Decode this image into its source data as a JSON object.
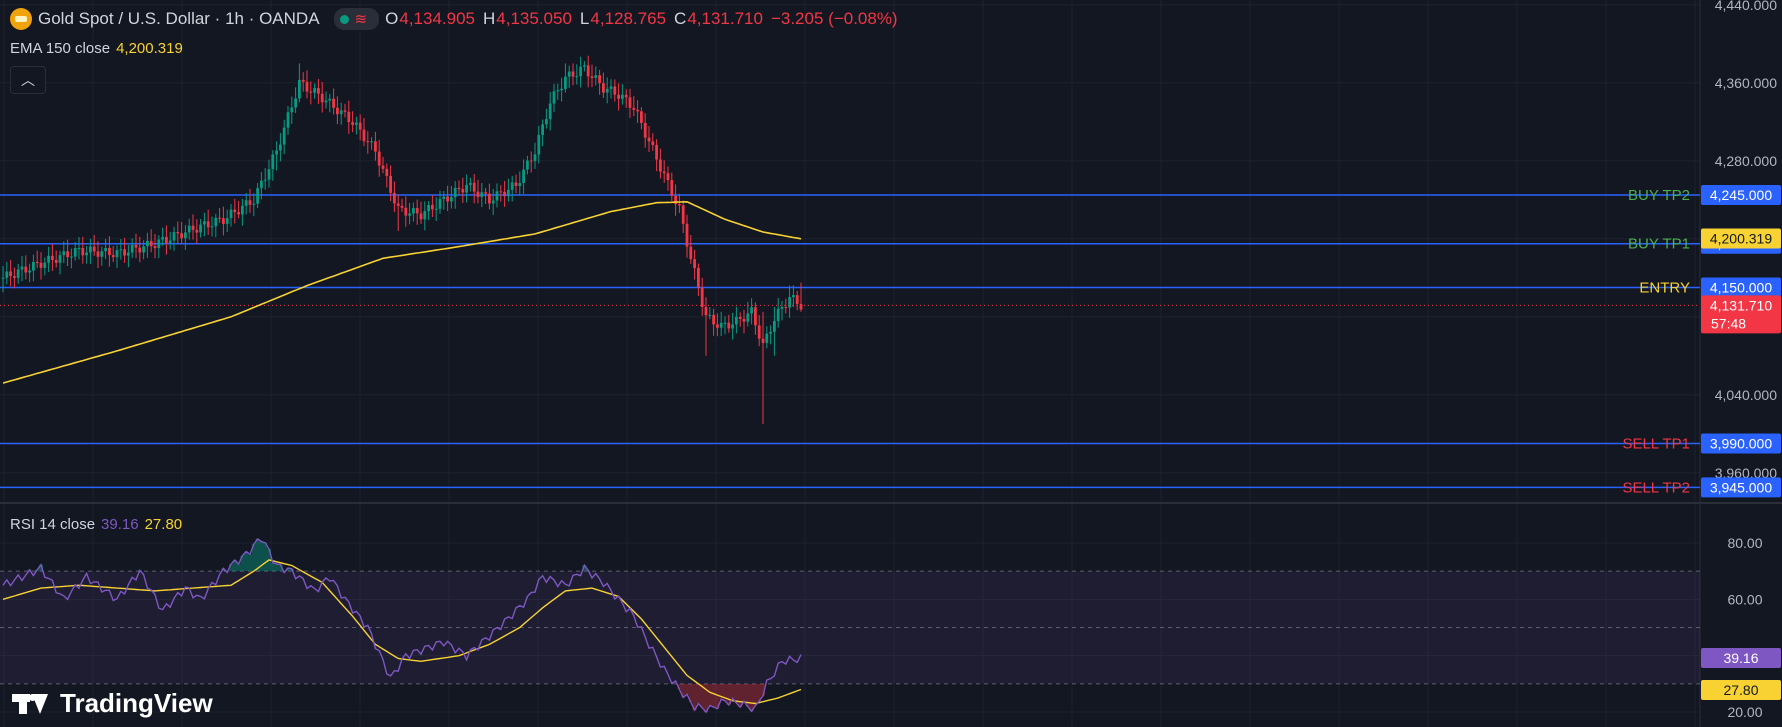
{
  "header": {
    "symbol": "Gold Spot / U.S. Dollar · 1h · OANDA",
    "ohlc": [
      {
        "k": "O",
        "v": "4,134.905"
      },
      {
        "k": "H",
        "v": "4,135.050"
      },
      {
        "k": "L",
        "v": "4,128.765"
      },
      {
        "k": "C",
        "v": "4,131.710"
      }
    ],
    "change": "−3.205 (−0.08%)"
  },
  "ema": {
    "label": "EMA 150 close",
    "value": "4,200.319"
  },
  "rsi": {
    "label": "RSI 14 close",
    "value": "39.16",
    "ma_value": "27.80"
  },
  "logo": {
    "text": "TradingView"
  },
  "colors": {
    "bg": "#131722",
    "up": "#089981",
    "down": "#f23645",
    "level": "#2962ff",
    "ema": "#f7d232",
    "rsi": "#7e57c2",
    "rsi_ma": "#f7d232"
  },
  "chart_data": [
    {
      "type": "candlestick",
      "price_axis_ticks": [
        "4,440.000",
        "4,360.000",
        "4,280.000",
        "4,040.000",
        "3,960.000"
      ],
      "ylim": [
        3930,
        4445
      ],
      "levels": [
        {
          "name": "BUY TP2",
          "value": 4245,
          "label": "4,245.000",
          "text_color": "#4caf50"
        },
        {
          "name": "BUY TP1",
          "value": 4195,
          "label": "4,195.000",
          "text_color": "#4caf50"
        },
        {
          "name": "ENTRY",
          "value": 4150,
          "label": "4,150.000",
          "text_color": "#f7d232"
        },
        {
          "name": "SELL TP1",
          "value": 3990,
          "label": "3,990.000",
          "text_color": "#f23645"
        },
        {
          "name": "SELL TP2",
          "value": 3945,
          "label": "3,945.000",
          "text_color": "#f23645"
        }
      ],
      "ema_tag": {
        "value": 4200.319,
        "label": "4,200.319"
      },
      "last_price": {
        "value": 4131.71,
        "label": "4,131.710",
        "countdown": "57:48"
      },
      "candle_close_keypoints": [
        [
          0,
          4160
        ],
        [
          10,
          4175
        ],
        [
          20,
          4188
        ],
        [
          30,
          4185
        ],
        [
          40,
          4195
        ],
        [
          50,
          4210
        ],
        [
          58,
          4220
        ],
        [
          66,
          4240
        ],
        [
          72,
          4290
        ],
        [
          78,
          4360
        ],
        [
          84,
          4345
        ],
        [
          92,
          4320
        ],
        [
          98,
          4290
        ],
        [
          104,
          4230
        ],
        [
          110,
          4225
        ],
        [
          116,
          4240
        ],
        [
          122,
          4255
        ],
        [
          128,
          4240
        ],
        [
          135,
          4255
        ],
        [
          140,
          4290
        ],
        [
          144,
          4340
        ],
        [
          148,
          4365
        ],
        [
          153,
          4375
        ],
        [
          158,
          4355
        ],
        [
          162,
          4348
        ],
        [
          166,
          4335
        ],
        [
          170,
          4300
        ],
        [
          174,
          4265
        ],
        [
          178,
          4230
        ],
        [
          181,
          4180
        ],
        [
          185,
          4120
        ],
        [
          189,
          4110
        ],
        [
          193,
          4115
        ],
        [
          197,
          4125
        ],
        [
          200,
          4090
        ],
        [
          203,
          4118
        ],
        [
          207,
          4140
        ],
        [
          210,
          4132
        ]
      ],
      "candle_range_keypoints": [
        [
          0,
          4145,
          4172
        ],
        [
          40,
          4180,
          4205
        ],
        [
          72,
          4270,
          4300
        ],
        [
          78,
          4340,
          4380
        ],
        [
          104,
          4208,
          4245
        ],
        [
          148,
          4350,
          4380
        ],
        [
          185,
          4080,
          4140
        ],
        [
          200,
          4010,
          4125
        ],
        [
          203,
          4080,
          4130
        ],
        [
          210,
          4125,
          4155
        ]
      ],
      "ema_keypoints": [
        [
          0,
          4052
        ],
        [
          30,
          4085
        ],
        [
          60,
          4120
        ],
        [
          80,
          4152
        ],
        [
          100,
          4180
        ],
        [
          120,
          4192
        ],
        [
          140,
          4205
        ],
        [
          160,
          4228
        ],
        [
          172,
          4237
        ],
        [
          180,
          4238
        ],
        [
          190,
          4220
        ],
        [
          200,
          4207
        ],
        [
          210,
          4200
        ]
      ]
    },
    {
      "type": "line",
      "name": "RSI 14",
      "y_ticks": [
        "80.00",
        "60.00",
        "20.00"
      ],
      "ylim": [
        20,
        80
      ],
      "band": [
        30,
        70
      ],
      "midline": 50,
      "rsi_keypoints": [
        [
          0,
          65
        ],
        [
          10,
          71
        ],
        [
          16,
          60
        ],
        [
          22,
          68
        ],
        [
          30,
          60
        ],
        [
          36,
          70
        ],
        [
          42,
          56
        ],
        [
          48,
          64
        ],
        [
          52,
          60
        ],
        [
          58,
          70
        ],
        [
          64,
          76
        ],
        [
          68,
          82
        ],
        [
          72,
          72
        ],
        [
          76,
          70
        ],
        [
          82,
          63
        ],
        [
          86,
          68
        ],
        [
          90,
          60
        ],
        [
          96,
          50
        ],
        [
          102,
          32
        ],
        [
          106,
          40
        ],
        [
          110,
          42
        ],
        [
          116,
          45
        ],
        [
          122,
          40
        ],
        [
          128,
          47
        ],
        [
          132,
          52
        ],
        [
          138,
          60
        ],
        [
          142,
          68
        ],
        [
          148,
          65
        ],
        [
          153,
          71
        ],
        [
          158,
          66
        ],
        [
          162,
          60
        ],
        [
          166,
          54
        ],
        [
          170,
          44
        ],
        [
          174,
          35
        ],
        [
          178,
          28
        ],
        [
          182,
          22
        ],
        [
          186,
          21
        ],
        [
          190,
          24
        ],
        [
          194,
          23
        ],
        [
          198,
          21
        ],
        [
          201,
          30
        ],
        [
          205,
          38
        ],
        [
          210,
          39
        ]
      ],
      "rsi_ma_keypoints": [
        [
          0,
          60
        ],
        [
          10,
          64
        ],
        [
          20,
          65
        ],
        [
          30,
          64
        ],
        [
          40,
          63
        ],
        [
          50,
          64
        ],
        [
          60,
          65
        ],
        [
          66,
          70
        ],
        [
          70,
          74
        ],
        [
          76,
          72
        ],
        [
          84,
          66
        ],
        [
          92,
          54
        ],
        [
          98,
          44
        ],
        [
          104,
          39
        ],
        [
          110,
          38
        ],
        [
          120,
          40
        ],
        [
          128,
          44
        ],
        [
          136,
          50
        ],
        [
          142,
          57
        ],
        [
          148,
          63
        ],
        [
          155,
          64
        ],
        [
          162,
          61
        ],
        [
          168,
          53
        ],
        [
          174,
          43
        ],
        [
          180,
          33
        ],
        [
          186,
          27
        ],
        [
          192,
          24
        ],
        [
          198,
          23
        ],
        [
          204,
          25
        ],
        [
          210,
          28
        ]
      ]
    }
  ]
}
